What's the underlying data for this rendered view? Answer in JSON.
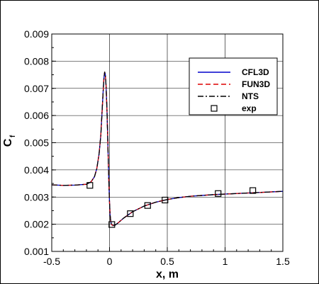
{
  "chart_data": {
    "type": "line",
    "xlabel": "x, m",
    "ylabel": "C",
    "ylabel_sub": "f",
    "xlim": [
      -0.5,
      1.5
    ],
    "ylim": [
      0.001,
      0.009
    ],
    "x_ticks": [
      "-0.5",
      "0",
      "0.5",
      "1",
      "1.5"
    ],
    "y_ticks": [
      "0.001",
      "0.002",
      "0.003",
      "0.004",
      "0.005",
      "0.006",
      "0.007",
      "0.008",
      "0.009"
    ],
    "grid": true,
    "legend_position": "top-right",
    "series": [
      {
        "name": "CFL3D",
        "style": "solid",
        "color": "#0000cc",
        "x": [
          -0.5,
          -0.4,
          -0.3,
          -0.2,
          -0.16,
          -0.13,
          -0.11,
          -0.09,
          -0.075,
          -0.065,
          -0.055,
          -0.048,
          -0.042,
          -0.036,
          -0.03,
          -0.022,
          -0.014,
          -0.006,
          0.0,
          0.005,
          0.01,
          0.015,
          0.02,
          0.03,
          0.05,
          0.08,
          0.12,
          0.2,
          0.3,
          0.4,
          0.5,
          0.6,
          0.7,
          0.8,
          0.9,
          1.0,
          1.1,
          1.2,
          1.3,
          1.4,
          1.5
        ],
        "y": [
          0.00345,
          0.00343,
          0.00344,
          0.00347,
          0.00356,
          0.00375,
          0.00405,
          0.0046,
          0.0053,
          0.0061,
          0.0069,
          0.0074,
          0.0076,
          0.0075,
          0.0071,
          0.0062,
          0.0049,
          0.0036,
          0.0028,
          0.00235,
          0.00212,
          0.00202,
          0.00198,
          0.00195,
          0.00197,
          0.00207,
          0.00222,
          0.00246,
          0.00267,
          0.00281,
          0.00291,
          0.00298,
          0.00303,
          0.00306,
          0.00309,
          0.00311,
          0.00313,
          0.00315,
          0.00317,
          0.00319,
          0.00321
        ]
      },
      {
        "name": "FUN3D",
        "style": "dashed",
        "color": "#dd0000",
        "x": [
          -0.5,
          -0.4,
          -0.3,
          -0.2,
          -0.16,
          -0.13,
          -0.11,
          -0.09,
          -0.075,
          -0.065,
          -0.055,
          -0.048,
          -0.042,
          -0.036,
          -0.03,
          -0.022,
          -0.014,
          -0.006,
          0.0,
          0.005,
          0.01,
          0.015,
          0.02,
          0.03,
          0.05,
          0.08,
          0.12,
          0.2,
          0.3,
          0.4,
          0.5,
          0.6,
          0.7,
          0.8,
          0.9,
          1.0,
          1.1,
          1.2,
          1.3,
          1.4,
          1.5
        ],
        "y": [
          0.00345,
          0.00343,
          0.00344,
          0.00347,
          0.00356,
          0.00375,
          0.00405,
          0.0046,
          0.0053,
          0.0061,
          0.0069,
          0.0074,
          0.0076,
          0.0075,
          0.0071,
          0.0062,
          0.0049,
          0.0036,
          0.0028,
          0.00235,
          0.00212,
          0.00202,
          0.00198,
          0.00195,
          0.00197,
          0.00207,
          0.00222,
          0.00246,
          0.00267,
          0.00281,
          0.00291,
          0.00298,
          0.00303,
          0.00306,
          0.00309,
          0.00311,
          0.00313,
          0.00315,
          0.00317,
          0.00319,
          0.00321
        ]
      },
      {
        "name": "NTS",
        "style": "dashdot",
        "color": "#000000",
        "x": [
          -0.5,
          -0.4,
          -0.3,
          -0.2,
          -0.16,
          -0.13,
          -0.11,
          -0.09,
          -0.075,
          -0.065,
          -0.055,
          -0.048,
          -0.042,
          -0.036,
          -0.03,
          -0.022,
          -0.014,
          -0.006,
          0.0,
          0.005,
          0.01,
          0.015,
          0.02,
          0.03,
          0.05,
          0.08,
          0.12,
          0.2,
          0.3,
          0.4,
          0.5,
          0.6,
          0.7,
          0.8,
          0.9,
          1.0,
          1.1,
          1.2,
          1.3,
          1.4,
          1.5
        ],
        "y": [
          0.00345,
          0.00343,
          0.00344,
          0.00347,
          0.00356,
          0.00375,
          0.00405,
          0.0046,
          0.0053,
          0.0061,
          0.0069,
          0.0074,
          0.0076,
          0.0075,
          0.0071,
          0.0062,
          0.0049,
          0.0036,
          0.0028,
          0.00235,
          0.00212,
          0.00202,
          0.00198,
          0.00195,
          0.00197,
          0.00207,
          0.00222,
          0.00246,
          0.00267,
          0.00281,
          0.00291,
          0.00298,
          0.00303,
          0.00306,
          0.00309,
          0.00311,
          0.00313,
          0.00315,
          0.00317,
          0.00319,
          0.00321
        ]
      },
      {
        "name": "exp",
        "style": "markers",
        "marker": "open-square",
        "color": "#000000",
        "x": [
          -0.17,
          0.02,
          0.18,
          0.33,
          0.48,
          0.94,
          1.24
        ],
        "y": [
          0.00343,
          0.00199,
          0.00239,
          0.00269,
          0.00289,
          0.00313,
          0.00324
        ]
      }
    ]
  }
}
